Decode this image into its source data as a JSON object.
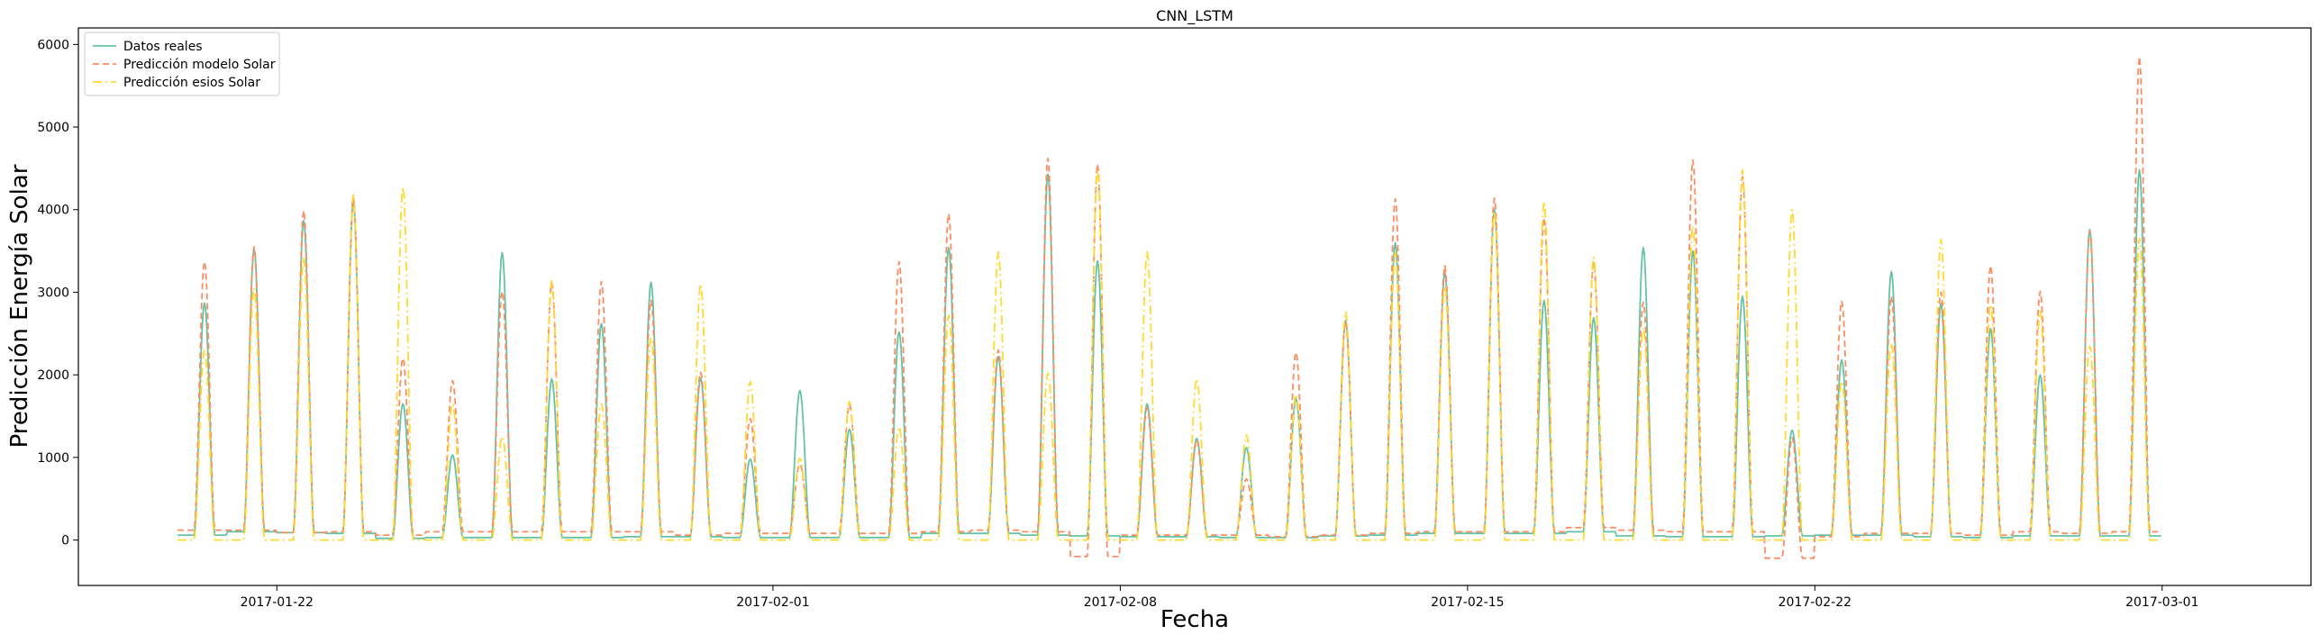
{
  "chart_data": {
    "type": "line",
    "title": "CNN_LSTM",
    "xlabel": "Fecha",
    "ylabel": "Predicción Energía Solar",
    "x_start": "2017-01-20",
    "x_end": "2017-03-02",
    "xlim": [
      "2017-01-18",
      "2017-03-04"
    ],
    "ylim": [
      -550,
      6200
    ],
    "x_ticks": [
      "2017-01-22",
      "2017-02-01",
      "2017-02-08",
      "2017-02-15",
      "2017-02-22",
      "2017-03-01"
    ],
    "y_ticks": [
      0,
      1000,
      2000,
      3000,
      4000,
      5000,
      6000
    ],
    "grid": false,
    "legend_position": "upper-left",
    "series": [
      {
        "name": "Datos reales",
        "color": "#66c2a5",
        "dash": "solid",
        "daily_peaks": [
          2870,
          3520,
          3870,
          4100,
          1650,
          1030,
          3480,
          1950,
          2620,
          3120,
          1960,
          980,
          1810,
          1340,
          2520,
          3540,
          2220,
          4430,
          3380,
          1650,
          1230,
          1120,
          1710,
          2660,
          3600,
          3240,
          4000,
          2900,
          2690,
          3540,
          3500,
          2950,
          1330,
          2180,
          3250,
          2860,
          2560,
          2000,
          3760,
          4480
        ],
        "night_values": [
          60,
          100,
          90,
          80,
          20,
          30,
          30,
          30,
          30,
          40,
          40,
          30,
          30,
          30,
          30,
          80,
          80,
          60,
          50,
          40,
          40,
          30,
          30,
          50,
          60,
          80,
          80,
          80,
          100,
          50,
          40,
          40,
          50,
          60,
          60,
          40,
          30,
          50,
          50,
          50
        ]
      },
      {
        "name": "Predicción modelo Solar",
        "color": "#fc8d62",
        "dash": "dashed",
        "daily_peaks": [
          3370,
          3550,
          3990,
          4150,
          2200,
          1930,
          3010,
          3110,
          3130,
          2900,
          2030,
          1470,
          920,
          1640,
          3370,
          3950,
          2300,
          4620,
          4550,
          1600,
          1210,
          740,
          2270,
          2640,
          4130,
          3320,
          4140,
          3900,
          3360,
          2880,
          4600,
          4400,
          1240,
          2890,
          2950,
          3000,
          3320,
          3010,
          3740,
          5850
        ],
        "night_values": [
          120,
          120,
          90,
          100,
          60,
          100,
          100,
          100,
          100,
          100,
          60,
          80,
          80,
          80,
          80,
          100,
          120,
          100,
          -200,
          60,
          60,
          60,
          40,
          60,
          80,
          100,
          100,
          100,
          150,
          120,
          100,
          100,
          -220,
          40,
          80,
          80,
          60,
          100,
          80,
          100
        ]
      },
      {
        "name": "Predicción esios Solar",
        "color": "#ffd92f",
        "dash": "dashdot",
        "daily_peaks": [
          2300,
          3050,
          3420,
          4180,
          4270,
          1650,
          1250,
          3140,
          1650,
          2450,
          3100,
          1920,
          990,
          1680,
          1370,
          2720,
          3490,
          2020,
          4480,
          3490,
          1950,
          1270,
          1760,
          2760,
          3480,
          3070,
          3980,
          4100,
          3420,
          2570,
          3800,
          4480,
          4000,
          1920,
          2380,
          3640,
          2850,
          2770,
          2350,
          3650
        ],
        "night_values": [
          0,
          0,
          0,
          0,
          0,
          0,
          0,
          0,
          0,
          0,
          0,
          0,
          0,
          0,
          0,
          0,
          0,
          0,
          0,
          0,
          0,
          0,
          0,
          0,
          0,
          0,
          0,
          0,
          0,
          0,
          0,
          0,
          0,
          0,
          0,
          0,
          0,
          0,
          0,
          0
        ]
      }
    ]
  }
}
